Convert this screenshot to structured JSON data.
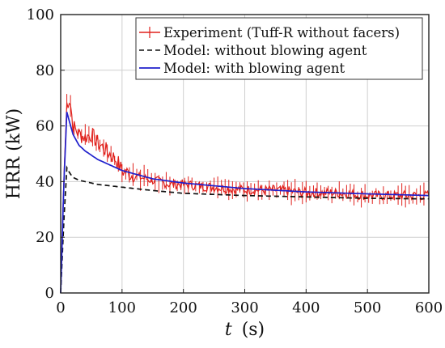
{
  "chart_data": {
    "type": "line",
    "title": "",
    "xlabel_var": "t",
    "xlabel_unit": "(s)",
    "ylabel": "HRR (kW)",
    "xlim": [
      0,
      600
    ],
    "ylim": [
      0,
      100
    ],
    "xticks": [
      0,
      100,
      200,
      300,
      400,
      500,
      600
    ],
    "yticks": [
      0,
      20,
      40,
      60,
      80,
      100
    ],
    "grid": true,
    "legend_position": "top-right",
    "series": [
      {
        "name": "Experiment (Tuff-R without facers)",
        "style": "noisy-line-with-errorbars",
        "color": "#e0201b",
        "x": [
          0,
          5,
          10,
          15,
          20,
          30,
          40,
          50,
          60,
          70,
          80,
          90,
          100,
          120,
          140,
          160,
          180,
          200,
          250,
          300,
          350,
          400,
          450,
          500,
          550,
          600
        ],
        "y": [
          0,
          40,
          68,
          70,
          60,
          57,
          56,
          57,
          54,
          52,
          50,
          48,
          44,
          42,
          41,
          40,
          39,
          39,
          38,
          37,
          37,
          36,
          36,
          35,
          35,
          35
        ]
      },
      {
        "name": "Model: without blowing agent",
        "style": "dashed",
        "color": "#111111",
        "x": [
          0,
          5,
          10,
          15,
          20,
          30,
          40,
          60,
          80,
          100,
          150,
          200,
          300,
          400,
          500,
          600
        ],
        "y": [
          0,
          25,
          45,
          43,
          41.5,
          40.5,
          40,
          39,
          38.5,
          38,
          36.8,
          35.8,
          35,
          34.5,
          34,
          33.8
        ]
      },
      {
        "name": "Model: with blowing agent",
        "style": "solid",
        "color": "#2020cc",
        "x": [
          0,
          5,
          10,
          15,
          20,
          30,
          40,
          60,
          80,
          100,
          150,
          200,
          300,
          400,
          500,
          600
        ],
        "y": [
          0,
          38,
          65,
          61,
          57,
          53,
          51,
          48,
          46,
          44,
          41,
          39.5,
          37.5,
          36.3,
          35.6,
          35
        ]
      }
    ]
  }
}
